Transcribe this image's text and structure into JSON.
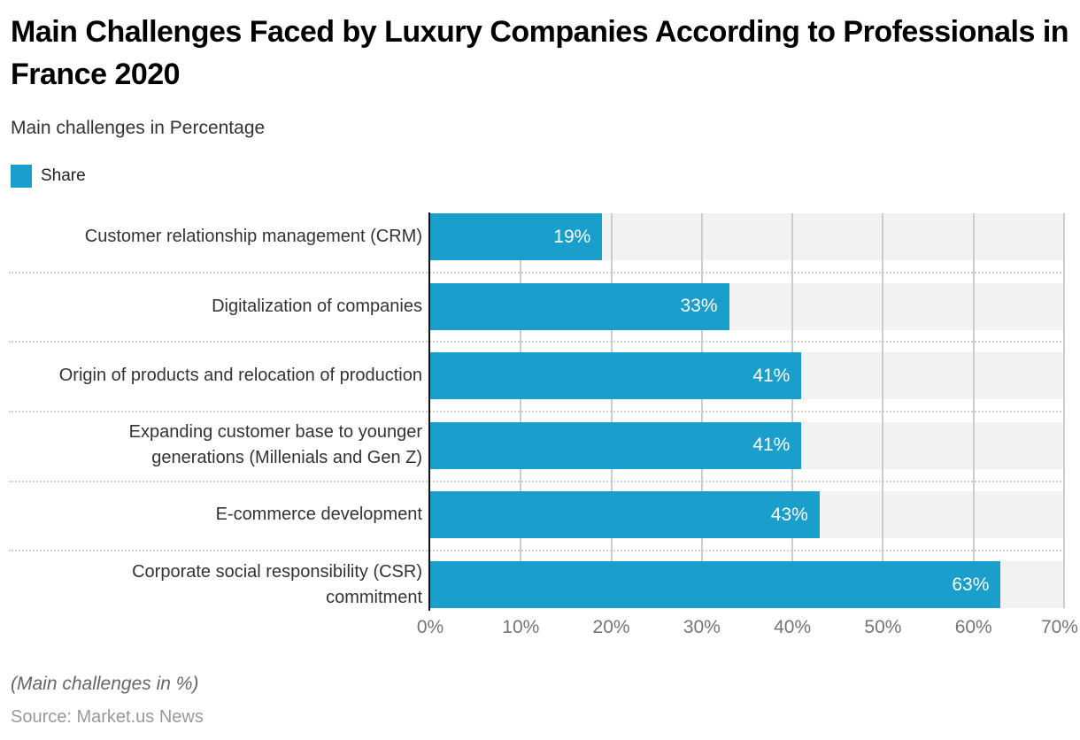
{
  "header": {
    "title": "Main Challenges Faced by Luxury Companies According to Professionals in France 2020",
    "subtitle": "Main challenges in Percentage"
  },
  "legend": {
    "label": "Share",
    "color": "#1A9ECC"
  },
  "chart_data": {
    "type": "bar",
    "orientation": "horizontal",
    "title": "Main Challenges Faced by Luxury Companies According to Professionals in France 2020",
    "subtitle": "Main challenges in Percentage",
    "series_name": "Share",
    "categories": [
      "Customer relationship management (CRM)",
      "Digitalization of companies",
      "Origin of products and relocation of production",
      "Expanding customer base to younger generations (Millenials and Gen Z)",
      "E-commerce development",
      "Corporate social responsibility (CSR) commitment"
    ],
    "values": [
      19,
      33,
      41,
      41,
      43,
      63
    ],
    "value_labels": [
      "19%",
      "33%",
      "41%",
      "41%",
      "43%",
      "63%"
    ],
    "x_ticks": [
      "0%",
      "10%",
      "20%",
      "30%",
      "40%",
      "50%",
      "60%",
      "70%"
    ],
    "xlim": [
      0,
      70
    ],
    "xlabel": "",
    "ylabel": "",
    "grid": true,
    "legend_position": "top-left",
    "bar_color": "#1A9ECC",
    "track_color": "#F2F2F2",
    "gridline_color": "#CCCCCC",
    "axis_line_color": "#111111"
  },
  "footer": {
    "note": "(Main challenges in %)",
    "source": "Source: Market.us News"
  }
}
